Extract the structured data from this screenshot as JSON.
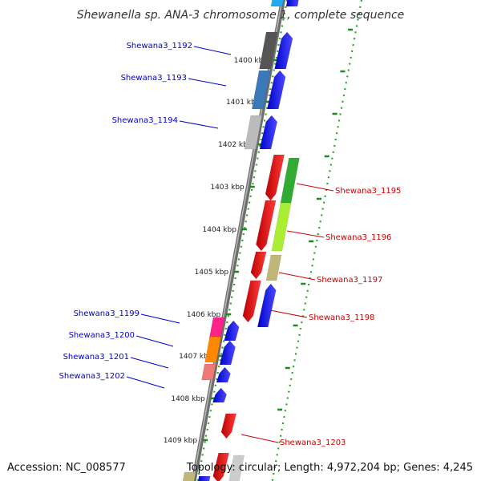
{
  "title": "Shewanella sp. ANA-3 chromosome 1, complete sequence",
  "footer": {
    "accession": "Accession: NC_008577",
    "summary": "Topology: circular; Length: 4,972,204 bp; Genes: 4,245"
  },
  "colors": {
    "left_label": "#0000cc",
    "right_label": "#cc0000",
    "backbone": "#888888",
    "tick_dot": "#22aa22",
    "forward_gene": "#0000ee",
    "reverse_gene": "#ee0000"
  },
  "ticks": [
    {
      "label": "1400 kbp"
    },
    {
      "label": "1401 kbp"
    },
    {
      "label": "1402 kbp"
    },
    {
      "label": "1403 kbp"
    },
    {
      "label": "1404 kbp"
    },
    {
      "label": "1405 kbp"
    },
    {
      "label": "1406 kbp"
    },
    {
      "label": "1407 kbp"
    },
    {
      "label": "1408 kbp"
    },
    {
      "label": "1409 kbp"
    }
  ],
  "genes_left": [
    {
      "label": "Shewana3_1192"
    },
    {
      "label": "Shewana3_1193"
    },
    {
      "label": "Shewana3_1194"
    },
    {
      "label": "Shewana3_1199"
    },
    {
      "label": "Shewana3_1200"
    },
    {
      "label": "Shewana3_1201"
    },
    {
      "label": "Shewana3_1202"
    }
  ],
  "genes_right": [
    {
      "label": "Shewana3_1195"
    },
    {
      "label": "Shewana3_1196"
    },
    {
      "label": "Shewana3_1197"
    },
    {
      "label": "Shewana3_1198"
    },
    {
      "label": "Shewana3_1203"
    }
  ]
}
